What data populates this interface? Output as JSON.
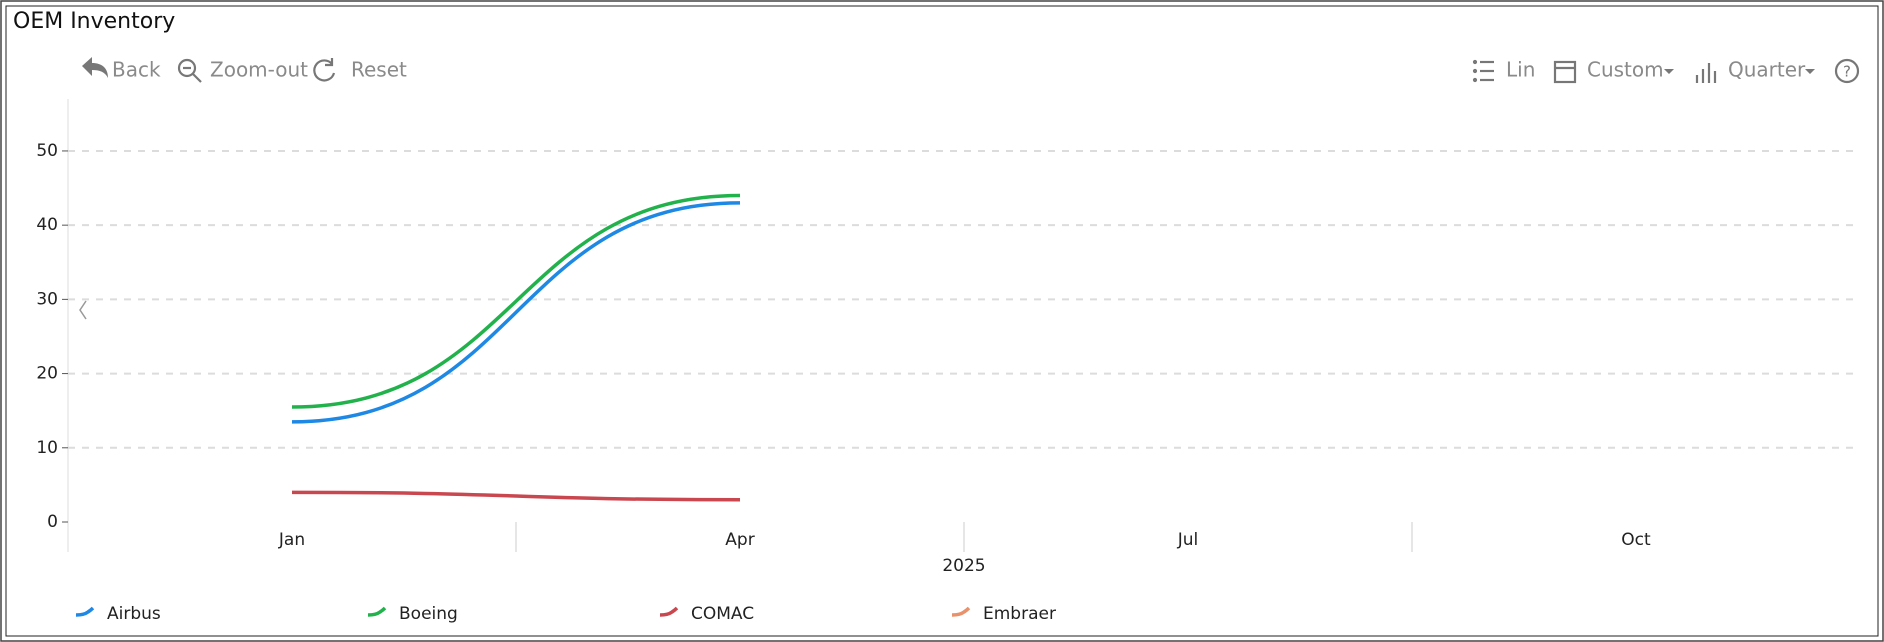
{
  "title": "OEM Inventory",
  "toolbar": {
    "left": [
      "Back",
      "Zoom-out",
      "Reset"
    ],
    "right": [
      "Lin",
      "Custom",
      "Quarter"
    ]
  },
  "chart_data": {
    "type": "line",
    "categories": [
      "Jan",
      "Apr",
      "Jul",
      "Oct"
    ],
    "x_group_label": "2025",
    "series": [
      {
        "name": "Airbus",
        "color": "#1e88e5",
        "values": [
          13.5,
          43,
          null,
          null
        ]
      },
      {
        "name": "Boeing",
        "color": "#22b24c",
        "values": [
          15.5,
          44,
          null,
          null
        ]
      },
      {
        "name": "COMAC",
        "color": "#c9474f",
        "values": [
          4,
          3,
          null,
          null
        ]
      },
      {
        "name": "Embraer",
        "color": "#e8916a",
        "values": [
          null,
          null,
          null,
          null
        ]
      }
    ],
    "ylim": [
      0,
      57
    ],
    "yticks": [
      0,
      10,
      20,
      30,
      40,
      50
    ],
    "grid": true,
    "legend": "bottom"
  }
}
